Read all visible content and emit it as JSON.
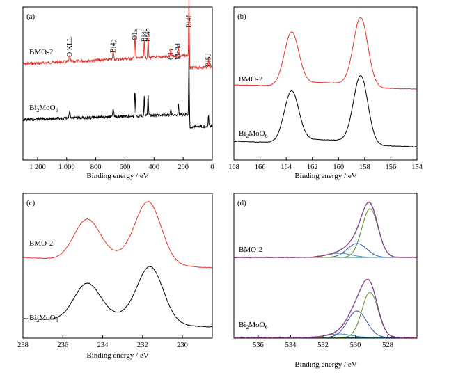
{
  "chart_data": [
    {
      "type": "line",
      "panel_label": "(a)",
      "xlabel": "Binding energy / eV",
      "xlim": [
        1300,
        0
      ],
      "x_reversed": true,
      "x_ticks": [
        1200,
        1000,
        800,
        600,
        400,
        200,
        0
      ],
      "x_tick_labels": [
        "1 200",
        "1 000",
        "800",
        "600",
        "400",
        "200",
        "0"
      ],
      "colors": {
        "BMO-2": "#e8302a",
        "Bi2MoO6": "#000000"
      },
      "series": [
        {
          "name": "BMO-2",
          "label_main": "BMO-2",
          "label_sub": "",
          "label_tail": ""
        },
        {
          "name": "Bi2MoO6",
          "label_main": "Bi",
          "label_sub": "2",
          "label_tail": "MoO",
          "label_sub2": "6"
        }
      ],
      "peak_annotations": [
        {
          "text": "O KLL",
          "x": 980
        },
        {
          "text": "Bi4p",
          "x": 680
        },
        {
          "text": "O1s",
          "x": 531
        },
        {
          "text": "Bi4d",
          "x": 467
        },
        {
          "text": "Bi4d",
          "x": 441
        },
        {
          "text": "C1s",
          "x": 285
        },
        {
          "text": "Mo3d",
          "x": 233
        },
        {
          "text": "Bi4f",
          "x": 160
        },
        {
          "text": "Bi5d",
          "x": 26
        }
      ]
    },
    {
      "type": "line",
      "panel_label": "(b)",
      "xlabel": "Binding energy / eV",
      "xlim": [
        168,
        154
      ],
      "x_reversed": true,
      "x_ticks": [
        168,
        166,
        164,
        162,
        160,
        158,
        156,
        154
      ],
      "x_tick_labels": [
        "168",
        "166",
        "164",
        "162",
        "160",
        "158",
        "156",
        "154"
      ],
      "peaks": {
        "BMO-2": [
          163.6,
          158.3
        ],
        "Bi2MoO6": [
          163.6,
          158.3
        ]
      },
      "series": [
        {
          "name": "BMO-2",
          "label_main": "BMO-2"
        },
        {
          "name": "Bi2MoO6",
          "label_main": "Bi",
          "label_sub": "2",
          "label_tail": "MoO",
          "label_sub2": "6"
        }
      ]
    },
    {
      "type": "line",
      "panel_label": "(c)",
      "xlabel": "Binding energy / eV",
      "xlim": [
        238,
        228.5
      ],
      "x_reversed": true,
      "x_ticks": [
        238,
        236,
        234,
        232,
        230
      ],
      "x_tick_labels": [
        "238",
        "236",
        "234",
        "232",
        "230"
      ],
      "peaks": {
        "BMO-2": [
          234.8,
          231.7
        ],
        "Bi2MoO6": [
          234.8,
          231.6
        ]
      },
      "series": [
        {
          "name": "BMO-2",
          "label_main": "BMO-2"
        },
        {
          "name": "Bi2MoO6",
          "label_main": "Bi",
          "label_sub": "2",
          "label_tail": "MoO",
          "label_sub2": "6"
        }
      ]
    },
    {
      "type": "line",
      "panel_label": "(d)",
      "xlabel": "Binding energy / eV",
      "xlim": [
        537.5,
        526.2
      ],
      "x_reversed": true,
      "x_ticks": [
        536,
        534,
        532,
        530,
        528
      ],
      "x_tick_labels": [
        "536",
        "534",
        "532",
        "530",
        "528"
      ],
      "fit_components_eV": [
        529.1,
        529.9,
        531.0
      ],
      "series": [
        {
          "name": "BMO-2",
          "label_main": "BMO-2"
        },
        {
          "name": "Bi2MoO6",
          "label_main": "Bi",
          "label_sub": "2",
          "label_tail": "MoO",
          "label_sub2": "6"
        }
      ],
      "colors": {
        "envelope": "#7b3fa0",
        "raw": "#d93a2a",
        "lattice_O": "#5a8c2a",
        "vacancy_O": "#2c4f9e",
        "adsorbed_O": "#3d8fb0",
        "background": "#1c6f7a"
      }
    }
  ]
}
